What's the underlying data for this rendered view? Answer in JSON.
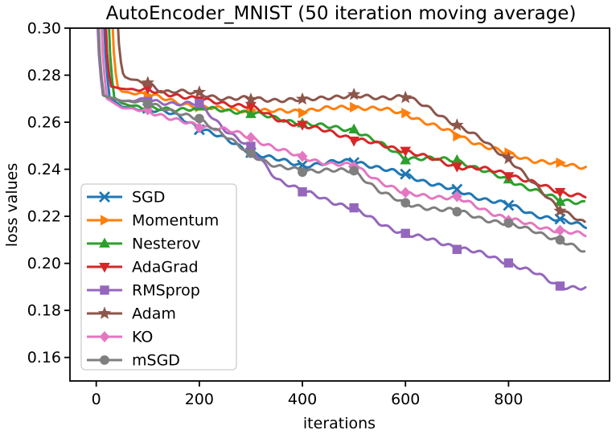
{
  "chart_data": {
    "type": "line",
    "title": "AutoEncoder_MNIST (50 iteration moving average)",
    "xlabel": "iterations",
    "ylabel": "loss values",
    "xlim": [
      -51,
      996
    ],
    "ylim": [
      0.15,
      0.3
    ],
    "grid": false,
    "legend_position": "inside-left",
    "marker_every": 100,
    "xticks": {
      "values": [
        0,
        200,
        400,
        600,
        800
      ],
      "labels": [
        "0",
        "200",
        "400",
        "600",
        "800"
      ]
    },
    "yticks": {
      "values": [
        0.3,
        0.28,
        0.26,
        0.24,
        0.22,
        0.2,
        0.18,
        0.16
      ],
      "labels": [
        "0.30",
        "0.28",
        "0.26",
        "0.24",
        "0.22",
        "0.20",
        "0.18",
        "0.16"
      ]
    },
    "series": [
      {
        "name": "SGD",
        "color": "#1f77b4",
        "marker": "x",
        "points": [
          [
            14,
            0.31
          ],
          [
            19,
            0.284
          ],
          [
            26,
            0.2705
          ],
          [
            50,
            0.2665
          ],
          [
            100,
            0.2655
          ],
          [
            150,
            0.2635
          ],
          [
            200,
            0.2578
          ],
          [
            250,
            0.2528
          ],
          [
            300,
            0.2473
          ],
          [
            350,
            0.2442
          ],
          [
            400,
            0.2415
          ],
          [
            450,
            0.2428
          ],
          [
            500,
            0.2436
          ],
          [
            550,
            0.2405
          ],
          [
            600,
            0.2376
          ],
          [
            650,
            0.234
          ],
          [
            700,
            0.2308
          ],
          [
            750,
            0.2275
          ],
          [
            800,
            0.225
          ],
          [
            850,
            0.2207
          ],
          [
            900,
            0.2182
          ],
          [
            950,
            0.216
          ]
        ]
      },
      {
        "name": "Momentum",
        "color": "#ff7f0e",
        "marker": ">",
        "points": [
          [
            30,
            0.31
          ],
          [
            35,
            0.285
          ],
          [
            42,
            0.2748
          ],
          [
            50,
            0.273
          ],
          [
            100,
            0.2718
          ],
          [
            150,
            0.2688
          ],
          [
            200,
            0.2665
          ],
          [
            250,
            0.2655
          ],
          [
            300,
            0.265
          ],
          [
            350,
            0.2646
          ],
          [
            400,
            0.265
          ],
          [
            450,
            0.2658
          ],
          [
            500,
            0.2665
          ],
          [
            550,
            0.2657
          ],
          [
            600,
            0.2636
          ],
          [
            650,
            0.259
          ],
          [
            700,
            0.2547
          ],
          [
            750,
            0.25
          ],
          [
            800,
            0.2465
          ],
          [
            850,
            0.2437
          ],
          [
            900,
            0.2421
          ],
          [
            950,
            0.241
          ]
        ]
      },
      {
        "name": "Nesterov",
        "color": "#2ca02c",
        "marker": "^",
        "points": [
          [
            23,
            0.31
          ],
          [
            28,
            0.283
          ],
          [
            35,
            0.2705
          ],
          [
            50,
            0.268
          ],
          [
            100,
            0.2657
          ],
          [
            150,
            0.2655
          ],
          [
            200,
            0.266
          ],
          [
            250,
            0.265
          ],
          [
            300,
            0.2642
          ],
          [
            350,
            0.2615
          ],
          [
            400,
            0.2596
          ],
          [
            450,
            0.258
          ],
          [
            500,
            0.2568
          ],
          [
            550,
            0.251
          ],
          [
            600,
            0.2448
          ],
          [
            650,
            0.2445
          ],
          [
            700,
            0.2438
          ],
          [
            750,
            0.2395
          ],
          [
            800,
            0.2353
          ],
          [
            850,
            0.2312
          ],
          [
            900,
            0.2267
          ],
          [
            950,
            0.226
          ]
        ]
      },
      {
        "name": "AdaGrad",
        "color": "#d62728",
        "marker": "v",
        "points": [
          [
            17,
            0.31
          ],
          [
            22,
            0.284
          ],
          [
            29,
            0.2752
          ],
          [
            50,
            0.2742
          ],
          [
            100,
            0.2734
          ],
          [
            150,
            0.2718
          ],
          [
            200,
            0.2696
          ],
          [
            250,
            0.268
          ],
          [
            300,
            0.2666
          ],
          [
            350,
            0.2614
          ],
          [
            400,
            0.2584
          ],
          [
            450,
            0.2562
          ],
          [
            500,
            0.253
          ],
          [
            550,
            0.2505
          ],
          [
            600,
            0.2479
          ],
          [
            650,
            0.2445
          ],
          [
            700,
            0.2411
          ],
          [
            750,
            0.2402
          ],
          [
            800,
            0.238
          ],
          [
            850,
            0.2342
          ],
          [
            900,
            0.2301
          ],
          [
            950,
            0.2288
          ]
        ]
      },
      {
        "name": "RMSprop",
        "color": "#9467bd",
        "marker": "s",
        "points": [
          [
            1,
            0.31
          ],
          [
            6,
            0.284
          ],
          [
            13,
            0.2715
          ],
          [
            50,
            0.269
          ],
          [
            100,
            0.2693
          ],
          [
            150,
            0.268
          ],
          [
            200,
            0.2676
          ],
          [
            250,
            0.257
          ],
          [
            300,
            0.2489
          ],
          [
            350,
            0.236
          ],
          [
            400,
            0.2308
          ],
          [
            450,
            0.2268
          ],
          [
            500,
            0.2233
          ],
          [
            550,
            0.217
          ],
          [
            600,
            0.2124
          ],
          [
            650,
            0.21
          ],
          [
            700,
            0.2069
          ],
          [
            750,
            0.204
          ],
          [
            800,
            0.2002
          ],
          [
            850,
            0.196
          ],
          [
            900,
            0.1903
          ],
          [
            950,
            0.1893
          ]
        ]
      },
      {
        "name": "Adam",
        "color": "#8c564b",
        "marker": "*",
        "points": [
          [
            40,
            0.31
          ],
          [
            45,
            0.289
          ],
          [
            53,
            0.2795
          ],
          [
            75,
            0.2775
          ],
          [
            100,
            0.2768
          ],
          [
            130,
            0.273
          ],
          [
            150,
            0.2732
          ],
          [
            200,
            0.2721
          ],
          [
            250,
            0.27
          ],
          [
            300,
            0.2701
          ],
          [
            350,
            0.2695
          ],
          [
            400,
            0.2693
          ],
          [
            450,
            0.2708
          ],
          [
            500,
            0.271
          ],
          [
            550,
            0.2705
          ],
          [
            600,
            0.271
          ],
          [
            650,
            0.2655
          ],
          [
            700,
            0.2585
          ],
          [
            750,
            0.2525
          ],
          [
            800,
            0.2444
          ],
          [
            850,
            0.2335
          ],
          [
            900,
            0.2233
          ],
          [
            950,
            0.2165
          ]
        ]
      },
      {
        "name": "KO",
        "color": "#e377c2",
        "marker": "D",
        "points": [
          [
            9,
            0.31
          ],
          [
            14,
            0.283
          ],
          [
            21,
            0.27
          ],
          [
            50,
            0.266
          ],
          [
            100,
            0.265
          ],
          [
            150,
            0.261
          ],
          [
            200,
            0.2585
          ],
          [
            250,
            0.257
          ],
          [
            300,
            0.2533
          ],
          [
            350,
            0.249
          ],
          [
            400,
            0.2448
          ],
          [
            450,
            0.2426
          ],
          [
            500,
            0.2415
          ],
          [
            550,
            0.235
          ],
          [
            600,
            0.2295
          ],
          [
            650,
            0.2285
          ],
          [
            700,
            0.2278
          ],
          [
            750,
            0.223
          ],
          [
            800,
            0.2189
          ],
          [
            850,
            0.216
          ],
          [
            900,
            0.2138
          ],
          [
            950,
            0.212
          ]
        ]
      },
      {
        "name": "mSGD",
        "color": "#7f7f7f",
        "marker": "o",
        "points": [
          [
            3,
            0.31
          ],
          [
            8,
            0.283
          ],
          [
            15,
            0.2712
          ],
          [
            50,
            0.269
          ],
          [
            100,
            0.2687
          ],
          [
            150,
            0.264
          ],
          [
            200,
            0.2618
          ],
          [
            250,
            0.254
          ],
          [
            300,
            0.2465
          ],
          [
            350,
            0.241
          ],
          [
            400,
            0.2395
          ],
          [
            450,
            0.2397
          ],
          [
            500,
            0.239
          ],
          [
            550,
            0.231
          ],
          [
            600,
            0.225
          ],
          [
            650,
            0.2235
          ],
          [
            700,
            0.2223
          ],
          [
            750,
            0.219
          ],
          [
            800,
            0.2165
          ],
          [
            850,
            0.214
          ],
          [
            900,
            0.2095
          ],
          [
            950,
            0.2048
          ]
        ]
      }
    ]
  }
}
